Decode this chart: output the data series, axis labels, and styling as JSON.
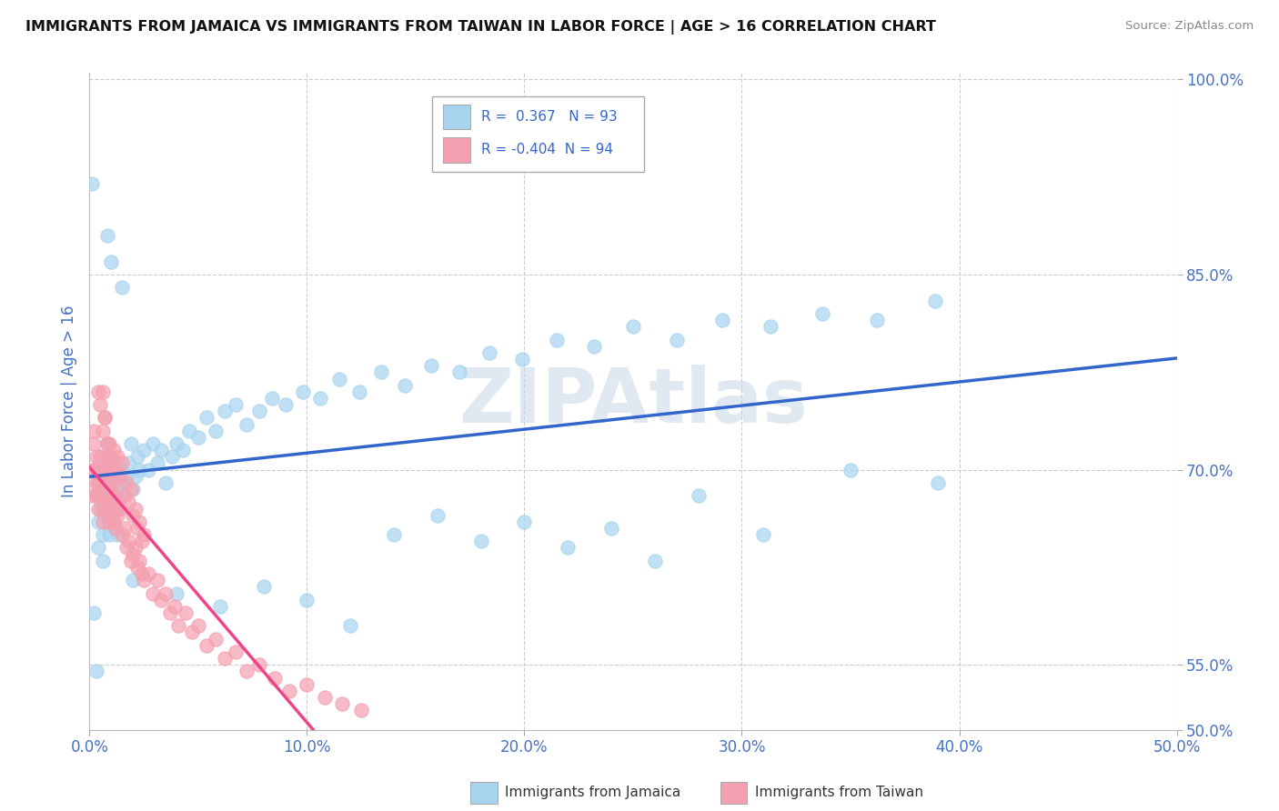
{
  "title": "IMMIGRANTS FROM JAMAICA VS IMMIGRANTS FROM TAIWAN IN LABOR FORCE | AGE > 16 CORRELATION CHART",
  "source": "Source: ZipAtlas.com",
  "ylabel": "In Labor Force | Age > 16",
  "xlabel": "",
  "xlim": [
    0.0,
    0.5
  ],
  "ylim": [
    0.5,
    1.005
  ],
  "yticks": [
    0.5,
    0.55,
    0.7,
    0.85,
    1.0
  ],
  "ytick_labels": [
    "50.0%",
    "55.0%",
    "70.0%",
    "85.0%",
    "100.0%"
  ],
  "xticks": [
    0.0,
    0.1,
    0.2,
    0.3,
    0.4,
    0.5
  ],
  "xtick_labels": [
    "0.0%",
    "10.0%",
    "20.0%",
    "30.0%",
    "40.0%",
    "50.0%"
  ],
  "jamaica_color": "#A8D4F0",
  "taiwan_color": "#F5A0B0",
  "jamaica_line_color": "#3366CC",
  "taiwan_line_color": "#EE4488",
  "R_jamaica": 0.367,
  "N_jamaica": 93,
  "R_taiwan": -0.404,
  "N_taiwan": 94,
  "watermark": "ZIPAtlas",
  "watermark_color": "#C8D8E8",
  "background_color": "#FFFFFF",
  "grid_color": "#CCCCCC",
  "title_color": "#111111",
  "axis_label_color": "#4472C4",
  "tick_color": "#4472C4",
  "legend_label_jamaica": "Immigrants from Jamaica",
  "legend_label_taiwan": "Immigrants from Taiwan",
  "jamaica_x_data": [
    0.003,
    0.004,
    0.005,
    0.005,
    0.006,
    0.006,
    0.007,
    0.007,
    0.008,
    0.008,
    0.009,
    0.009,
    0.01,
    0.01,
    0.011,
    0.011,
    0.012,
    0.012,
    0.013,
    0.013,
    0.014,
    0.015,
    0.016,
    0.017,
    0.018,
    0.019,
    0.02,
    0.021,
    0.022,
    0.023,
    0.025,
    0.027,
    0.029,
    0.031,
    0.033,
    0.035,
    0.038,
    0.04,
    0.043,
    0.046,
    0.05,
    0.054,
    0.058,
    0.062,
    0.067,
    0.072,
    0.078,
    0.084,
    0.09,
    0.098,
    0.106,
    0.115,
    0.124,
    0.134,
    0.145,
    0.157,
    0.17,
    0.184,
    0.199,
    0.215,
    0.232,
    0.25,
    0.27,
    0.291,
    0.313,
    0.337,
    0.362,
    0.389,
    0.39,
    0.35,
    0.31,
    0.28,
    0.26,
    0.24,
    0.22,
    0.2,
    0.18,
    0.16,
    0.14,
    0.12,
    0.1,
    0.08,
    0.06,
    0.04,
    0.02,
    0.015,
    0.01,
    0.008,
    0.006,
    0.004,
    0.003,
    0.002,
    0.001
  ],
  "jamaica_y_data": [
    0.68,
    0.66,
    0.71,
    0.67,
    0.685,
    0.65,
    0.7,
    0.665,
    0.72,
    0.68,
    0.69,
    0.65,
    0.71,
    0.67,
    0.695,
    0.66,
    0.705,
    0.675,
    0.685,
    0.65,
    0.7,
    0.69,
    0.68,
    0.695,
    0.705,
    0.72,
    0.685,
    0.695,
    0.71,
    0.7,
    0.715,
    0.7,
    0.72,
    0.705,
    0.715,
    0.69,
    0.71,
    0.72,
    0.715,
    0.73,
    0.725,
    0.74,
    0.73,
    0.745,
    0.75,
    0.735,
    0.745,
    0.755,
    0.75,
    0.76,
    0.755,
    0.77,
    0.76,
    0.775,
    0.765,
    0.78,
    0.775,
    0.79,
    0.785,
    0.8,
    0.795,
    0.81,
    0.8,
    0.815,
    0.81,
    0.82,
    0.815,
    0.83,
    0.69,
    0.7,
    0.65,
    0.68,
    0.63,
    0.655,
    0.64,
    0.66,
    0.645,
    0.665,
    0.65,
    0.58,
    0.6,
    0.61,
    0.595,
    0.605,
    0.615,
    0.84,
    0.86,
    0.88,
    0.63,
    0.64,
    0.545,
    0.59,
    0.92
  ],
  "taiwan_x_data": [
    0.001,
    0.001,
    0.002,
    0.002,
    0.002,
    0.003,
    0.003,
    0.003,
    0.004,
    0.004,
    0.004,
    0.005,
    0.005,
    0.005,
    0.006,
    0.006,
    0.006,
    0.007,
    0.007,
    0.008,
    0.008,
    0.009,
    0.009,
    0.01,
    0.01,
    0.011,
    0.011,
    0.012,
    0.012,
    0.013,
    0.014,
    0.015,
    0.016,
    0.017,
    0.018,
    0.019,
    0.02,
    0.021,
    0.022,
    0.023,
    0.024,
    0.025,
    0.027,
    0.029,
    0.031,
    0.033,
    0.035,
    0.037,
    0.039,
    0.041,
    0.044,
    0.047,
    0.05,
    0.054,
    0.058,
    0.062,
    0.067,
    0.072,
    0.078,
    0.085,
    0.092,
    0.1,
    0.108,
    0.116,
    0.125,
    0.004,
    0.005,
    0.006,
    0.007,
    0.008,
    0.009,
    0.01,
    0.011,
    0.012,
    0.013,
    0.014,
    0.015,
    0.016,
    0.017,
    0.018,
    0.019,
    0.02,
    0.021,
    0.022,
    0.023,
    0.024,
    0.025,
    0.006,
    0.007,
    0.008,
    0.009,
    0.01,
    0.011,
    0.012
  ],
  "taiwan_y_data": [
    0.7,
    0.68,
    0.72,
    0.7,
    0.73,
    0.69,
    0.71,
    0.68,
    0.7,
    0.67,
    0.69,
    0.71,
    0.69,
    0.68,
    0.7,
    0.67,
    0.66,
    0.69,
    0.68,
    0.7,
    0.67,
    0.68,
    0.66,
    0.69,
    0.67,
    0.68,
    0.66,
    0.67,
    0.655,
    0.665,
    0.67,
    0.65,
    0.655,
    0.64,
    0.645,
    0.63,
    0.635,
    0.64,
    0.625,
    0.63,
    0.62,
    0.615,
    0.62,
    0.605,
    0.615,
    0.6,
    0.605,
    0.59,
    0.595,
    0.58,
    0.59,
    0.575,
    0.58,
    0.565,
    0.57,
    0.555,
    0.56,
    0.545,
    0.55,
    0.54,
    0.53,
    0.535,
    0.525,
    0.52,
    0.515,
    0.76,
    0.75,
    0.73,
    0.74,
    0.71,
    0.72,
    0.705,
    0.715,
    0.7,
    0.71,
    0.695,
    0.705,
    0.68,
    0.69,
    0.675,
    0.685,
    0.665,
    0.67,
    0.655,
    0.66,
    0.645,
    0.65,
    0.76,
    0.74,
    0.72,
    0.71,
    0.7,
    0.69,
    0.68
  ]
}
